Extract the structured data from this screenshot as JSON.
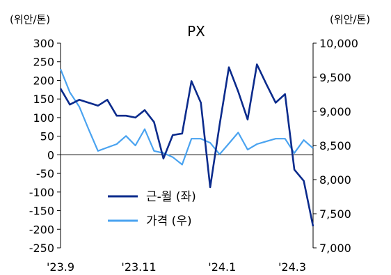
{
  "chart_data": {
    "type": "line",
    "title": "PX",
    "y_left_unit": "(위안/톤)",
    "y_right_unit": "(위안/톤)",
    "y_left": {
      "min": -250,
      "max": 300,
      "ticks": [
        "300",
        "250",
        "200",
        "150",
        "100",
        "50",
        "0",
        "-50",
        "-100",
        "-150",
        "-200",
        "-250"
      ]
    },
    "y_right": {
      "min": 7000,
      "max": 10000,
      "ticks": [
        "10,000",
        "9,500",
        "9,000",
        "8,500",
        "8,000",
        "7,500",
        "7,000"
      ]
    },
    "x_ticks": [
      "'23.9",
      "'23.11",
      "'24.1",
      "'24.3"
    ],
    "legend_position": "bottom-left",
    "series": [
      {
        "name": "근-월 (좌)",
        "axis": "left",
        "color": "#0b2b8c",
        "values": [
          178,
          135,
          148,
          140,
          132,
          148,
          105,
          105,
          100,
          120,
          88,
          -10,
          53,
          57,
          198,
          140,
          -87,
          80,
          235,
          170,
          95,
          243,
          190,
          140,
          163,
          -40,
          -70,
          -192
        ]
      },
      {
        "name": "가격 (우)",
        "axis": "right",
        "color": "#4aa3f0",
        "values": [
          9620,
          9280,
          9070,
          8740,
          8420,
          8470,
          8520,
          8640,
          8500,
          8740,
          8420,
          8390,
          8330,
          8220,
          8600,
          8600,
          8540,
          8370,
          8530,
          8690,
          8440,
          8520,
          8560,
          8600,
          8600,
          8390,
          8580,
          8460
        ]
      }
    ]
  }
}
